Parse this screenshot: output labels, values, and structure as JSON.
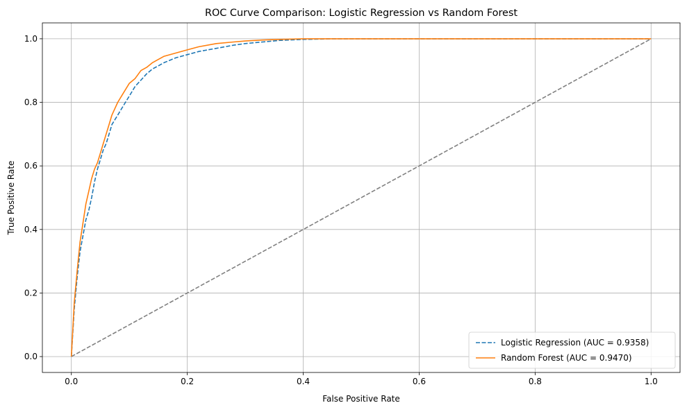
{
  "chart_data": {
    "type": "line",
    "title": "ROC Curve Comparison: Logistic Regression vs Random Forest",
    "xlabel": "False Positive Rate",
    "ylabel": "True Positive Rate",
    "xlim": [
      -0.05,
      1.05
    ],
    "ylim": [
      -0.05,
      1.05
    ],
    "xticks": [
      0.0,
      0.2,
      0.4,
      0.6,
      0.8,
      1.0
    ],
    "xtick_labels": [
      "0.0",
      "0.2",
      "0.4",
      "0.6",
      "0.8",
      "1.0"
    ],
    "yticks": [
      0.0,
      0.2,
      0.4,
      0.6,
      0.8,
      1.0
    ],
    "ytick_labels": [
      "0.0",
      "0.2",
      "0.4",
      "0.6",
      "0.8",
      "1.0"
    ],
    "grid": true,
    "legend_position": "lower-right",
    "series": [
      {
        "name": "Logistic Regression (AUC = 0.9358)",
        "color": "#1f77b4",
        "style": "dashed",
        "x": [
          0.0,
          0.005,
          0.01,
          0.015,
          0.02,
          0.025,
          0.03,
          0.035,
          0.04,
          0.045,
          0.05,
          0.055,
          0.06,
          0.065,
          0.07,
          0.08,
          0.09,
          0.1,
          0.11,
          0.12,
          0.13,
          0.14,
          0.15,
          0.16,
          0.18,
          0.2,
          0.22,
          0.25,
          0.28,
          0.3,
          0.33,
          0.36,
          0.4,
          0.45,
          0.5,
          1.0
        ],
        "y": [
          0.0,
          0.15,
          0.25,
          0.33,
          0.38,
          0.43,
          0.46,
          0.5,
          0.55,
          0.59,
          0.62,
          0.65,
          0.67,
          0.7,
          0.73,
          0.76,
          0.79,
          0.82,
          0.85,
          0.87,
          0.89,
          0.905,
          0.915,
          0.925,
          0.94,
          0.95,
          0.96,
          0.97,
          0.98,
          0.985,
          0.99,
          0.995,
          0.998,
          1.0,
          1.0,
          1.0
        ]
      },
      {
        "name": "Random Forest (AUC = 0.9470)",
        "color": "#ff7f0e",
        "style": "solid",
        "x": [
          0.0,
          0.005,
          0.01,
          0.015,
          0.02,
          0.025,
          0.03,
          0.035,
          0.04,
          0.045,
          0.05,
          0.055,
          0.06,
          0.065,
          0.07,
          0.075,
          0.08,
          0.09,
          0.1,
          0.11,
          0.12,
          0.13,
          0.14,
          0.15,
          0.16,
          0.18,
          0.2,
          0.22,
          0.25,
          0.28,
          0.3,
          0.33,
          0.36,
          0.4,
          0.45,
          1.0
        ],
        "y": [
          0.0,
          0.17,
          0.27,
          0.36,
          0.42,
          0.48,
          0.52,
          0.56,
          0.59,
          0.61,
          0.64,
          0.67,
          0.7,
          0.73,
          0.76,
          0.78,
          0.8,
          0.83,
          0.86,
          0.875,
          0.9,
          0.91,
          0.925,
          0.935,
          0.945,
          0.955,
          0.965,
          0.975,
          0.985,
          0.99,
          0.993,
          0.996,
          0.998,
          1.0,
          1.0,
          1.0
        ]
      },
      {
        "name": "",
        "color": "#808080",
        "style": "dashed",
        "x": [
          0.0,
          1.0
        ],
        "y": [
          0.0,
          1.0
        ]
      }
    ]
  }
}
